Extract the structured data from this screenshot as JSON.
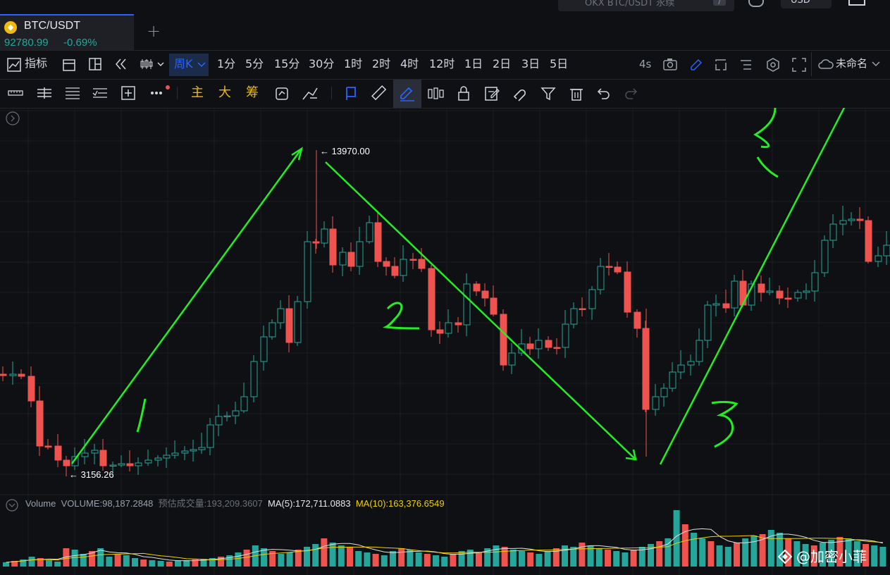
{
  "header": {
    "search_placeholder": "OKX BTC/USDT 永续",
    "search_key": "/",
    "currency": "USD"
  },
  "tab": {
    "symbol": "BTC/USDT",
    "price": "92780.99",
    "change": "-0.69%"
  },
  "toolbar1": {
    "indicators_label": "指标",
    "active_timeframe": "周K",
    "timeframes": [
      "1分",
      "5分",
      "15分",
      "30分",
      "1时",
      "2时",
      "4时",
      "12时",
      "1日",
      "2日",
      "3日",
      "5日"
    ],
    "refresh": "4s",
    "layout_name": "未命名"
  },
  "toolbar2": {
    "main_label": "主",
    "big_label": "大",
    "chip_label": "筹"
  },
  "chart": {
    "high_label": "← 13970.00",
    "low_label": "← 3156.26",
    "annotation_1": "1",
    "annotation_2": "2",
    "annotation_3": "3",
    "annotation_4": "3"
  },
  "volume": {
    "title": "Volume",
    "volume_label": "VOLUME:98,187.2848",
    "estimate_label": "预估成交量:193,209.3607",
    "ma5_label": "MA(5):172,711.0883",
    "ma10_label": "MA(10):163,376.6549"
  },
  "watermark": {
    "text": "@加密小菲"
  },
  "colors": {
    "up": "#26a69a",
    "down": "#ef5350",
    "drawing": "#22ee22",
    "accent": "#2962ff",
    "ma5": "#e0e0e0",
    "ma10": "#f0d000"
  }
}
